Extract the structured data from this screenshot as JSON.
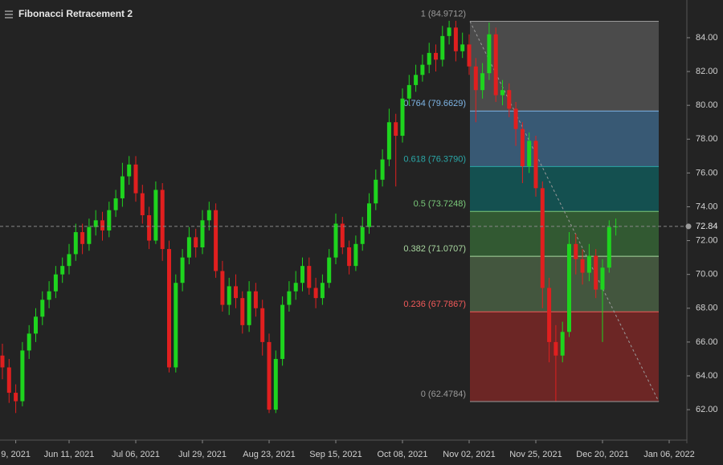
{
  "chart_data": {
    "type": "candlestick",
    "title": "Fibonacci Retracement 2",
    "categories": [
      null,
      null,
      "9, 2021",
      null,
      null,
      null,
      null,
      null,
      null,
      null,
      "Jun 11, 2021",
      null,
      null,
      null,
      null,
      null,
      null,
      null,
      null,
      null,
      "Jul 06, 2021",
      null,
      null,
      null,
      null,
      null,
      null,
      null,
      null,
      null,
      "Jul 29, 2021",
      null,
      null,
      null,
      null,
      null,
      null,
      null,
      null,
      null,
      "Aug 23, 2021",
      null,
      null,
      null,
      null,
      null,
      null,
      null,
      null,
      null,
      "Sep 15, 2021",
      null,
      null,
      null,
      null,
      null,
      null,
      null,
      null,
      null,
      "Oct 08, 2021",
      null,
      null,
      null,
      null,
      null,
      null,
      null,
      null,
      null,
      "Nov 02, 2021",
      null,
      null,
      null,
      null,
      null,
      null,
      null,
      null,
      null,
      "Nov 25, 2021",
      null,
      null,
      null,
      null,
      null,
      null,
      null,
      null,
      null,
      "Dec 20, 2021",
      null,
      null,
      null,
      null,
      null,
      null,
      null,
      null,
      null,
      "Jan 06, 2022"
    ],
    "open": [
      65.2,
      64.5,
      63.0,
      62.5,
      65.5,
      66.5,
      67.5,
      68.5,
      69.0,
      70.0,
      70.5,
      71.2,
      72.5,
      71.8,
      72.8,
      73.2,
      72.6,
      73.8,
      74.5,
      75.8,
      76.5,
      74.8,
      73.5,
      72.0,
      75.0,
      71.5,
      64.5,
      69.5,
      71.0,
      72.2,
      71.6,
      73.2,
      73.8,
      70.2,
      68.2,
      69.3,
      68.6,
      67.0,
      69.0,
      68.0,
      66.0,
      62.0,
      65.0,
      68.2,
      69.0,
      69.5,
      70.5,
      69.2,
      68.6,
      69.5,
      71.0,
      73.0,
      71.6,
      70.5,
      71.8,
      72.8,
      74.2,
      75.6,
      76.8,
      79.0,
      78.2,
      80.4,
      81.2,
      81.8,
      82.4,
      83.1,
      82.7,
      84.1,
      84.6,
      83.2,
      83.6,
      82.3,
      80.9,
      81.9,
      84.2,
      80.6,
      80.9,
      79.8,
      78.6,
      76.4,
      77.9,
      75.1,
      69.2,
      66.0,
      65.2,
      66.6,
      71.8,
      70.9,
      70.1,
      71.1,
      69.1,
      70.4,
      72.8,
      null,
      null,
      null,
      null,
      null,
      null,
      null,
      null
    ],
    "high": [
      65.9,
      65.0,
      63.5,
      66.0,
      67.0,
      68.0,
      69.0,
      69.6,
      70.5,
      71.0,
      71.8,
      73.0,
      73.0,
      73.3,
      73.8,
      73.7,
      74.3,
      75.0,
      76.6,
      77.0,
      77.0,
      75.3,
      74.0,
      75.5,
      75.4,
      72.0,
      70.0,
      71.5,
      72.8,
      72.7,
      73.8,
      74.3,
      74.2,
      70.8,
      69.8,
      70.0,
      69.0,
      69.6,
      69.5,
      68.5,
      66.5,
      65.5,
      68.7,
      69.6,
      70.2,
      71.0,
      71.0,
      69.8,
      70.0,
      71.5,
      73.6,
      73.4,
      72.0,
      72.3,
      73.4,
      74.8,
      76.2,
      77.4,
      79.8,
      79.5,
      81.0,
      81.8,
      82.4,
      83.0,
      83.7,
      83.6,
      84.7,
      85.0,
      85.0,
      84.3,
      84.2,
      82.8,
      82.5,
      84.9,
      84.6,
      81.5,
      81.3,
      80.2,
      79.0,
      78.4,
      78.2,
      75.5,
      69.8,
      67.0,
      67.2,
      72.5,
      72.4,
      71.5,
      71.8,
      71.5,
      70.9,
      73.2,
      73.3,
      null,
      null,
      null,
      null,
      null,
      null,
      null,
      null
    ],
    "low": [
      63.8,
      62.4,
      61.8,
      62.2,
      65.0,
      66.0,
      67.0,
      68.0,
      68.6,
      69.5,
      70.0,
      70.8,
      71.2,
      71.4,
      72.3,
      72.0,
      72.2,
      73.4,
      74.0,
      75.3,
      74.3,
      73.0,
      71.5,
      71.8,
      70.8,
      64.2,
      64.2,
      69.0,
      70.6,
      71.0,
      71.2,
      72.6,
      69.8,
      67.8,
      67.6,
      68.0,
      66.5,
      66.6,
      67.5,
      65.2,
      61.8,
      61.8,
      64.6,
      67.8,
      68.5,
      69.0,
      68.8,
      68.0,
      68.2,
      69.2,
      70.6,
      71.2,
      70.0,
      70.2,
      71.4,
      72.4,
      73.8,
      75.2,
      76.4,
      75.2,
      77.8,
      80.0,
      80.8,
      81.4,
      81.9,
      82.0,
      82.3,
      83.6,
      82.6,
      82.8,
      81.8,
      79.0,
      80.4,
      81.5,
      80.2,
      80.0,
      79.3,
      77.6,
      75.4,
      76.0,
      74.6,
      68.0,
      64.8,
      62.5,
      64.8,
      66.3,
      70.0,
      69.4,
      69.6,
      68.6,
      66.0,
      70.1,
      72.3,
      null,
      null,
      null,
      null,
      null,
      null,
      null,
      null
    ],
    "close": [
      64.5,
      63.0,
      62.5,
      65.5,
      66.5,
      67.5,
      68.5,
      69.0,
      70.0,
      70.5,
      71.2,
      72.5,
      71.8,
      72.8,
      73.2,
      72.6,
      73.8,
      74.5,
      75.8,
      76.5,
      74.8,
      73.5,
      72.0,
      75.0,
      71.5,
      64.5,
      69.5,
      71.0,
      72.2,
      71.6,
      73.2,
      73.8,
      70.2,
      68.2,
      69.3,
      68.6,
      67.0,
      69.0,
      68.0,
      66.0,
      62.0,
      65.0,
      68.2,
      69.0,
      69.5,
      70.5,
      69.2,
      68.6,
      69.5,
      71.0,
      73.0,
      71.6,
      70.5,
      71.8,
      72.8,
      74.2,
      75.6,
      76.8,
      79.0,
      78.2,
      80.4,
      81.2,
      81.8,
      82.4,
      83.1,
      82.7,
      84.1,
      84.6,
      83.2,
      83.6,
      82.3,
      80.9,
      81.9,
      84.2,
      80.6,
      80.9,
      79.8,
      78.6,
      76.4,
      77.9,
      75.1,
      69.2,
      66.0,
      65.2,
      66.6,
      71.8,
      70.9,
      70.1,
      71.1,
      69.1,
      70.4,
      72.8,
      72.84,
      null,
      null,
      null,
      null,
      null,
      null,
      null,
      null
    ],
    "up_color": "#1ed41e",
    "down_color": "#e01f1f",
    "ylim": [
      60.2,
      86.23
    ],
    "yticks": [
      {
        "value": 62,
        "label": "62.00"
      },
      {
        "value": 64,
        "label": "64.00"
      },
      {
        "value": 66,
        "label": "66.00"
      },
      {
        "value": 68,
        "label": "68.00"
      },
      {
        "value": 70,
        "label": "70.00"
      },
      {
        "value": 72,
        "label": "72.00"
      },
      {
        "value": 74,
        "label": "74.00"
      },
      {
        "value": 76,
        "label": "76.00"
      },
      {
        "value": 78,
        "label": "78.00"
      },
      {
        "value": 80,
        "label": "80.00"
      },
      {
        "value": 82,
        "label": "82.00"
      },
      {
        "value": 84,
        "label": "84.00"
      }
    ],
    "current_price": {
      "value": 72.84,
      "label": "72.84"
    },
    "fib_levels": [
      {
        "price": 84.9712,
        "label": "1 (84.9712)",
        "color": "#9a9a9a",
        "fill": "rgba(125,125,125,0.45)"
      },
      {
        "price": 79.6629,
        "label": "0.764 (79.6629)",
        "color": "#7fb6e6",
        "fill": "rgba(70,125,170,0.6)"
      },
      {
        "price": 76.379,
        "label": "0.618 (76.3790)",
        "color": "#2aa7a7",
        "fill": "rgba(10,110,110,0.6)"
      },
      {
        "price": 73.7248,
        "label": "0.5 (73.7248)",
        "color": "#7ac97a",
        "fill": "rgba(60,125,60,0.6)"
      },
      {
        "price": 71.0707,
        "label": "0.382 (71.0707)",
        "color": "#a9d8a0",
        "fill": "rgba(95,130,85,0.55)"
      },
      {
        "price": 67.7867,
        "label": "0.236 (67.7867)",
        "color": "#f25a5a",
        "fill": "rgba(140,40,38,0.7)"
      },
      {
        "price": 62.4784,
        "label": "0 (62.4784)",
        "color": "#9a9a9a"
      }
    ]
  }
}
